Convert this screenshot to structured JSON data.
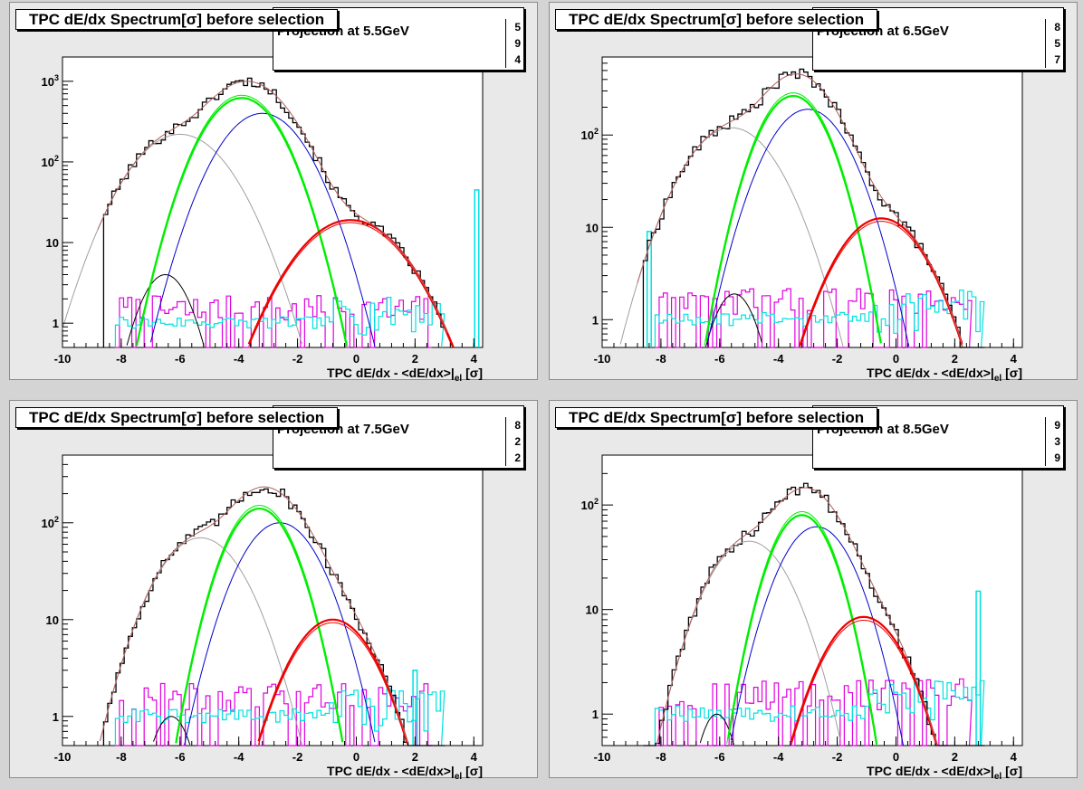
{
  "colors": {
    "data": "#000000",
    "fit_total": "#b06060",
    "fit_gray": "#a0a0a0",
    "fit_green": "#00ee00",
    "fit_blue": "#0000cc",
    "fit_red": "#ee0000",
    "fit_black": "#000000",
    "hist_magenta": "#e000e0",
    "hist_cyan": "#00e0e0",
    "pad_bg": "#e9e9e9",
    "frame_bg": "#ffffff"
  },
  "chart_data": [
    {
      "type": "line",
      "title": "TPC dE/dx Spectrum[σ] before selection",
      "subtitle": "Projection at 5.5GeV",
      "stat_digits": [
        "5",
        "9",
        "4"
      ],
      "xlabel": "TPC dE/dx - <dE/dx>|el [σ]",
      "ylabel": "",
      "yscale": "log",
      "xlim": [
        -10,
        4.3
      ],
      "ylim": [
        0.5,
        2000
      ],
      "xticks": [
        "-10",
        "-8",
        "-6",
        "-4",
        "-2",
        "0",
        "2",
        "4"
      ],
      "yticks": [
        {
          "v": 1,
          "label": "1"
        },
        {
          "v": 10,
          "label": "10"
        },
        {
          "v": 100,
          "label": "10^2"
        },
        {
          "v": 1000,
          "label": "10^3"
        }
      ],
      "components": [
        {
          "name": "gray",
          "A": 220,
          "mu": -6.0,
          "s": 1.2
        },
        {
          "name": "black_small",
          "A": 4,
          "mu": -6.5,
          "s": 0.65
        },
        {
          "name": "green",
          "A": 620,
          "mu": -3.9,
          "s": 0.95
        },
        {
          "name": "blue",
          "A": 400,
          "mu": -3.2,
          "s": 1.05
        },
        {
          "name": "red",
          "A": 19,
          "mu": -0.2,
          "s": 1.3
        }
      ],
      "spike": {
        "x": 4.1,
        "y": 45
      }
    },
    {
      "type": "line",
      "title": "TPC dE/dx Spectrum[σ] before selection",
      "subtitle": "Projection at 6.5GeV",
      "stat_digits": [
        "8",
        "5",
        "7"
      ],
      "xlabel": "TPC dE/dx - <dE/dx>|el [σ]",
      "ylabel": "",
      "yscale": "log",
      "xlim": [
        -10,
        4.3
      ],
      "ylim": [
        0.5,
        700
      ],
      "xticks": [
        "-10",
        "-8",
        "-6",
        "-4",
        "-2",
        "0",
        "2",
        "4"
      ],
      "yticks": [
        {
          "v": 1,
          "label": "1"
        },
        {
          "v": 10,
          "label": "10"
        },
        {
          "v": 100,
          "label": "10^2"
        }
      ],
      "components": [
        {
          "name": "gray",
          "A": 120,
          "mu": -5.6,
          "s": 1.15
        },
        {
          "name": "black_small",
          "A": 1.9,
          "mu": -5.5,
          "s": 0.6
        },
        {
          "name": "green",
          "A": 265,
          "mu": -3.5,
          "s": 0.85
        },
        {
          "name": "blue",
          "A": 190,
          "mu": -3.0,
          "s": 1.0
        },
        {
          "name": "red",
          "A": 12.5,
          "mu": -0.5,
          "s": 1.1
        }
      ],
      "spike": {
        "x": -8.4,
        "y": 9
      }
    },
    {
      "type": "line",
      "title": "TPC dE/dx Spectrum[σ] before selection",
      "subtitle": "Projection at 7.5GeV",
      "stat_digits": [
        "8",
        "2",
        "2"
      ],
      "xlabel": "TPC dE/dx - <dE/dx>|el [σ]",
      "ylabel": "",
      "yscale": "log",
      "xlim": [
        -10,
        4.3
      ],
      "ylim": [
        0.5,
        500
      ],
      "xticks": [
        "-10",
        "-8",
        "-6",
        "-4",
        "-2",
        "0",
        "2",
        "4"
      ],
      "yticks": [
        {
          "v": 1,
          "label": "1"
        },
        {
          "v": 10,
          "label": "10"
        },
        {
          "v": 100,
          "label": "10^2"
        }
      ],
      "components": [
        {
          "name": "gray",
          "A": 70,
          "mu": -5.3,
          "s": 1.1
        },
        {
          "name": "black_small",
          "A": 1.0,
          "mu": -6.3,
          "s": 0.55
        },
        {
          "name": "green",
          "A": 140,
          "mu": -3.3,
          "s": 0.85
        },
        {
          "name": "blue",
          "A": 100,
          "mu": -2.6,
          "s": 1.0
        },
        {
          "name": "red",
          "A": 10,
          "mu": -0.8,
          "s": 1.05
        }
      ],
      "spike": {
        "x": 2.0,
        "y": 3
      }
    },
    {
      "type": "line",
      "title": "TPC dE/dx Spectrum[σ] before selection",
      "subtitle": "Projection at 8.5GeV",
      "stat_digits": [
        "9",
        "3",
        "9"
      ],
      "xlabel": "TPC dE/dx - <dE/dx>|el [σ]",
      "ylabel": "",
      "yscale": "log",
      "xlim": [
        -10,
        4.3
      ],
      "ylim": [
        0.5,
        300
      ],
      "xticks": [
        "-10",
        "-8",
        "-6",
        "-4",
        "-2",
        "0",
        "2",
        "4"
      ],
      "yticks": [
        {
          "v": 1,
          "label": "1"
        },
        {
          "v": 10,
          "label": "10"
        },
        {
          "v": 100,
          "label": "10^2"
        }
      ],
      "components": [
        {
          "name": "gray",
          "A": 45,
          "mu": -5.0,
          "s": 1.05
        },
        {
          "name": "black_small",
          "A": 1.0,
          "mu": -6.1,
          "s": 0.5
        },
        {
          "name": "green",
          "A": 80,
          "mu": -3.2,
          "s": 0.8
        },
        {
          "name": "blue",
          "A": 62,
          "mu": -2.7,
          "s": 0.95
        },
        {
          "name": "red",
          "A": 8.5,
          "mu": -1.1,
          "s": 1.05
        }
      ],
      "spike": {
        "x": 2.8,
        "y": 15
      }
    }
  ]
}
